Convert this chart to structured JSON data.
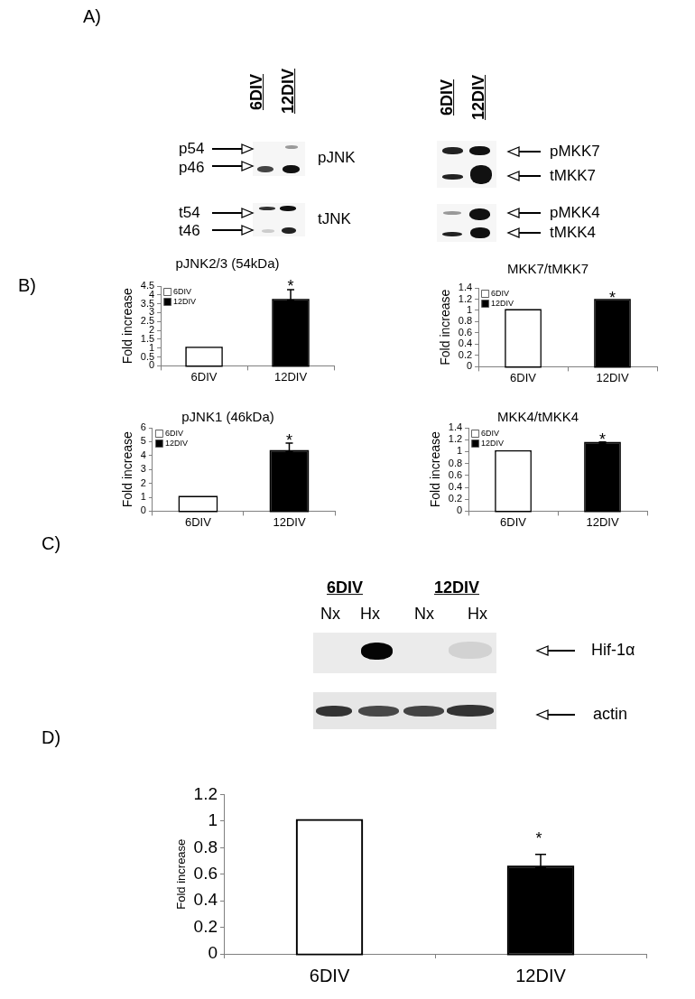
{
  "chart_data": [
    {
      "type": "other",
      "annotations": [
        "A)",
        "6DIV",
        "12DIV",
        "p54",
        "p46",
        "pJNK",
        "t54",
        "t46",
        "tJNK",
        "6DIV",
        "12DIV",
        "pMKK7",
        "tMKK7",
        "pMKK4",
        "tMKK4"
      ]
    },
    {
      "type": "bar",
      "title": "pJNK2/3 (54kDa)",
      "ylabel": "Fold increase",
      "categories": [
        "6DIV",
        "12DIV"
      ],
      "series": [
        {
          "name": "6DIV",
          "color": "#ffffff",
          "values": [
            1,
            null
          ]
        },
        {
          "name": "12DIV",
          "color": "#000000",
          "values": [
            null,
            3.7
          ],
          "errors": [
            null,
            [
              3.7,
              4.3
            ]
          ]
        }
      ],
      "ylim": [
        0,
        4.5
      ],
      "yticks": [
        0,
        0.5,
        1,
        1.5,
        2,
        2.5,
        3,
        3.5,
        4,
        4.5
      ],
      "legend": "top left",
      "annotations": [
        "B)",
        {
          "text": "*",
          "x": "12DIV"
        }
      ]
    },
    {
      "type": "bar",
      "title": "MKK7/tMKK7",
      "ylabel": "Fold increase",
      "categories": [
        "6DIV",
        "12DIV"
      ],
      "series": [
        {
          "name": "6DIV",
          "color": "#ffffff",
          "values": [
            1,
            null
          ]
        },
        {
          "name": "12DIV",
          "color": "#000000",
          "values": [
            null,
            1.18
          ]
        }
      ],
      "ylim": [
        0,
        1.4
      ],
      "yticks": [
        0,
        0.2,
        0.4,
        0.6,
        0.8,
        1,
        1.2,
        1.4
      ],
      "legend": "top left",
      "annotations": [
        {
          "text": "*",
          "x": "12DIV"
        }
      ]
    },
    {
      "type": "bar",
      "title": "pJNK1 (46kDa)",
      "ylabel": "Fold increase",
      "categories": [
        "6DIV",
        "12DIV"
      ],
      "series": [
        {
          "name": "6DIV",
          "color": "#ffffff",
          "values": [
            1,
            null
          ]
        },
        {
          "name": "12DIV",
          "color": "#000000",
          "values": [
            null,
            4.3
          ],
          "errors": [
            null,
            [
              4.3,
              4.9
            ]
          ]
        }
      ],
      "ylim": [
        0,
        6
      ],
      "yticks": [
        0,
        1,
        2,
        3,
        4,
        5,
        6
      ],
      "legend": "top left",
      "annotations": [
        {
          "text": "*",
          "x": "12DIV"
        }
      ]
    },
    {
      "type": "bar",
      "title": "MKK4/tMKK4",
      "ylabel": "Fold increase",
      "categories": [
        "6DIV",
        "12DIV"
      ],
      "series": [
        {
          "name": "6DIV",
          "color": "#ffffff",
          "values": [
            1,
            null
          ]
        },
        {
          "name": "12DIV",
          "color": "#000000",
          "values": [
            null,
            1.14
          ],
          "errors": [
            null,
            [
              1.14,
              1.16
            ]
          ]
        }
      ],
      "ylim": [
        0,
        1.4
      ],
      "yticks": [
        0,
        0.2,
        0.4,
        0.6,
        0.8,
        1,
        1.2,
        1.4
      ],
      "legend": "top left",
      "annotations": [
        {
          "text": "*",
          "x": "12DIV"
        }
      ]
    },
    {
      "type": "other",
      "annotations": [
        "C)",
        "6DIV",
        "12DIV",
        "Nx",
        "Hx",
        "Nx",
        "Hx",
        "Hif-1α",
        "actin"
      ]
    },
    {
      "type": "bar",
      "ylabel": "Fold increase",
      "categories": [
        "6DIV",
        "12DIV"
      ],
      "values": [
        1,
        0.65
      ],
      "colors": [
        "#ffffff",
        "#000000"
      ],
      "errors": [
        null,
        [
          0.65,
          0.75
        ]
      ],
      "ylim": [
        0,
        1.2
      ],
      "yticks": [
        0,
        0.2,
        0.4,
        0.6,
        0.8,
        1,
        1.2
      ],
      "annotations": [
        "D)",
        "*"
      ]
    }
  ]
}
